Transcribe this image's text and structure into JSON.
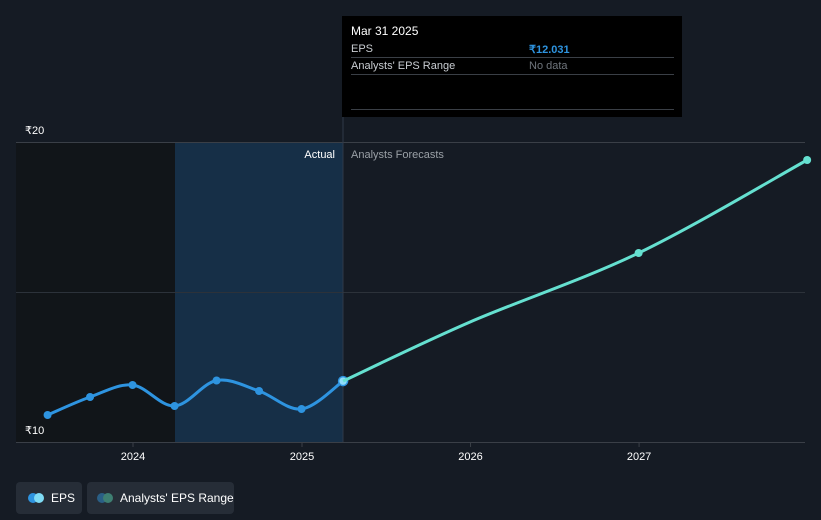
{
  "tooltip": {
    "date": "Mar 31 2025",
    "rows": [
      {
        "label": "EPS",
        "value": "₹12.031",
        "color": "#2e94e0"
      },
      {
        "label": "Analysts' EPS Range",
        "value": "No data",
        "color": "#6f757c"
      }
    ]
  },
  "legend": {
    "eps_label": "EPS",
    "range_label": "Analysts' EPS Range"
  },
  "colors": {
    "background": "#151b24",
    "actual_shade": "#16324d",
    "past_shade": "#111519",
    "eps_line": "#2e94e0",
    "forecast_line": "#65e0d0",
    "grid": "#3a3f47"
  },
  "chart_data": {
    "type": "line",
    "y_tick_labels": [
      "₹20",
      "₹10"
    ],
    "ylim": [
      10,
      20
    ],
    "x_tick_labels": [
      "2024",
      "2025",
      "2026",
      "2027"
    ],
    "divider_labels": {
      "left": "Actual",
      "right": "Analysts Forecasts"
    },
    "divider_date": "2025-03-31",
    "series": [
      {
        "name": "EPS",
        "style": "actual",
        "points": [
          {
            "x": "2023-06-30",
            "y": 10.9
          },
          {
            "x": "2023-09-30",
            "y": 11.5
          },
          {
            "x": "2023-12-31",
            "y": 11.9
          },
          {
            "x": "2024-03-31",
            "y": 11.2
          },
          {
            "x": "2024-06-30",
            "y": 12.05
          },
          {
            "x": "2024-09-30",
            "y": 11.7
          },
          {
            "x": "2024-12-31",
            "y": 11.1
          },
          {
            "x": "2025-03-31",
            "y": 12.031
          }
        ]
      },
      {
        "name": "EPS",
        "style": "forecast",
        "points": [
          {
            "x": "2025-03-31",
            "y": 12.031
          },
          {
            "x": "2025-12-31",
            "y": 14.0
          },
          {
            "x": "2026-12-31",
            "y": 16.3
          },
          {
            "x": "2027-12-31",
            "y": 19.4
          }
        ]
      }
    ]
  }
}
